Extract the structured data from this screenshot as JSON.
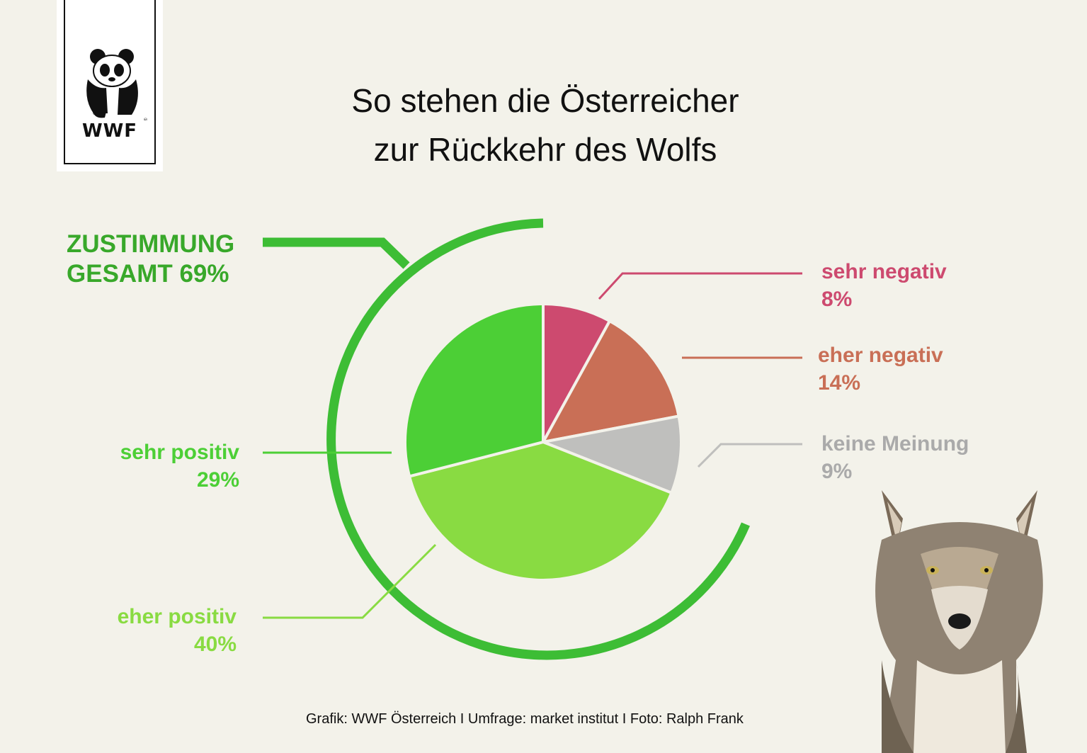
{
  "logo": {
    "text": "WWF"
  },
  "title": {
    "line1": "So stehen die Österreicher",
    "line2": "zur Rückkehr des Wolfs"
  },
  "total": {
    "line1": "ZUSTIMMUNG",
    "line2": "GESAMT  69%"
  },
  "chart_data": {
    "type": "pie",
    "unit": "%",
    "slices": [
      {
        "label": "sehr negativ",
        "value": 8,
        "display": "8%",
        "color": "#cd4a6f"
      },
      {
        "label": "eher negativ",
        "value": 14,
        "display": "14%",
        "color": "#c96f56"
      },
      {
        "label": "keine Meinung",
        "value": 9,
        "display": "9%",
        "color": "#bfbfbd"
      },
      {
        "label": "eher positiv",
        "value": 40,
        "display": "40%",
        "color": "#89db42"
      },
      {
        "label": "sehr positiv",
        "value": 29,
        "display": "29%",
        "color": "#4ccf36"
      }
    ],
    "total_approval": {
      "label": "ZUSTIMMUNG GESAMT",
      "value": 69,
      "color": "#3dbd35"
    }
  },
  "credit": "Grafik: WWF Österreich I Umfrage: market institut I Foto: Ralph Frank",
  "colors": {
    "background": "#f3f2ea",
    "text": "#111111",
    "total_label": "#38a82a",
    "ring": "#3dbd35"
  },
  "icons": {
    "logo": "panda-icon",
    "photo": "wolf-photo"
  }
}
